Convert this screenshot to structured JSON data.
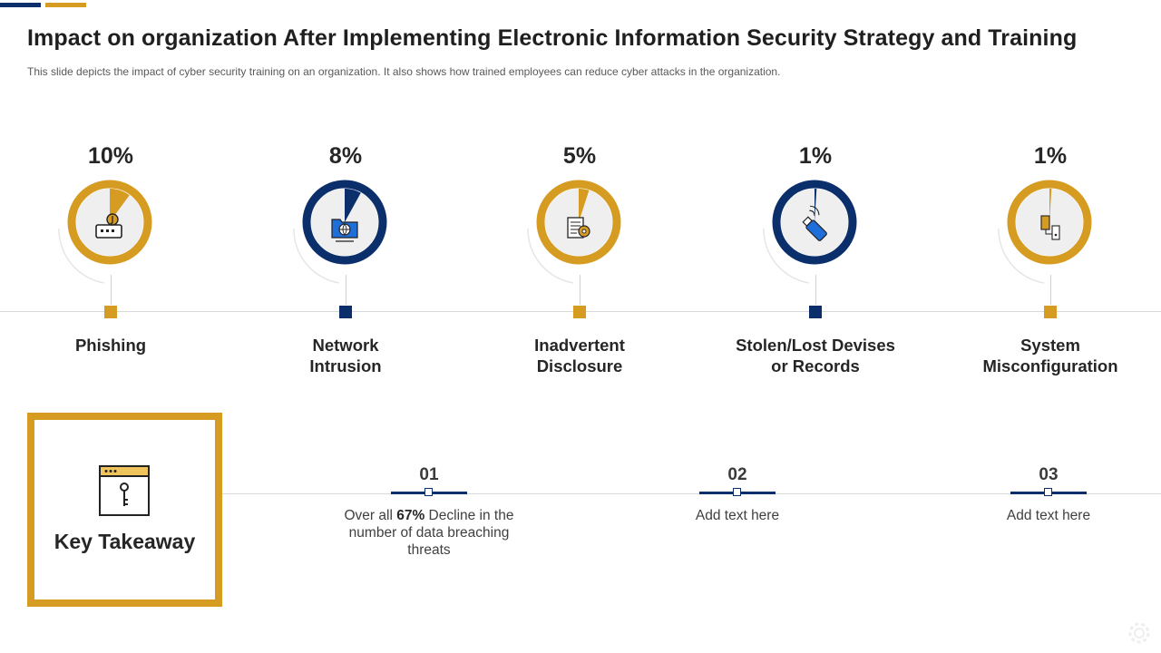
{
  "header": {
    "title": "Impact on organization After Implementing Electronic Information Security Strategy and Training",
    "subtitle": "This slide depicts the impact of cyber security training on an organization. It also shows how trained employees can reduce cyber attacks in the organization."
  },
  "colors": {
    "gold": "#d69c21",
    "navy": "#0b2f6b",
    "line_gray": "#d9d9d9"
  },
  "threats": [
    {
      "percent_label": "10%",
      "value": 10,
      "name_line1": "Phishing",
      "name_line2": "",
      "ring_color": "#d69c21",
      "icon": "phishing-hook-icon"
    },
    {
      "percent_label": "8%",
      "value": 8,
      "name_line1": "Network",
      "name_line2": "Intrusion",
      "ring_color": "#0b2f6b",
      "icon": "network-folder-icon"
    },
    {
      "percent_label": "5%",
      "value": 5,
      "name_line1": "Inadvertent",
      "name_line2": "Disclosure",
      "ring_color": "#d69c21",
      "icon": "document-gear-icon"
    },
    {
      "percent_label": "1%",
      "value": 1,
      "name_line1": "Stolen/Lost Devises",
      "name_line2": "or Records",
      "ring_color": "#0b2f6b",
      "icon": "usb-drive-icon"
    },
    {
      "percent_label": "1%",
      "value": 1,
      "name_line1": "System",
      "name_line2": "Misconfiguration",
      "ring_color": "#d69c21",
      "icon": "misconfig-devices-icon"
    }
  ],
  "takeaway": {
    "label": "Key Takeaway",
    "icon": "browser-key-icon",
    "steps": [
      {
        "number": "01",
        "text_prefix": "Over all ",
        "text_bold": "67%",
        "text_suffix": " Decline in the number of data breaching threats"
      },
      {
        "number": "02",
        "text_prefix": "Add text here",
        "text_bold": "",
        "text_suffix": ""
      },
      {
        "number": "03",
        "text_prefix": "Add text here",
        "text_bold": "",
        "text_suffix": ""
      }
    ]
  }
}
